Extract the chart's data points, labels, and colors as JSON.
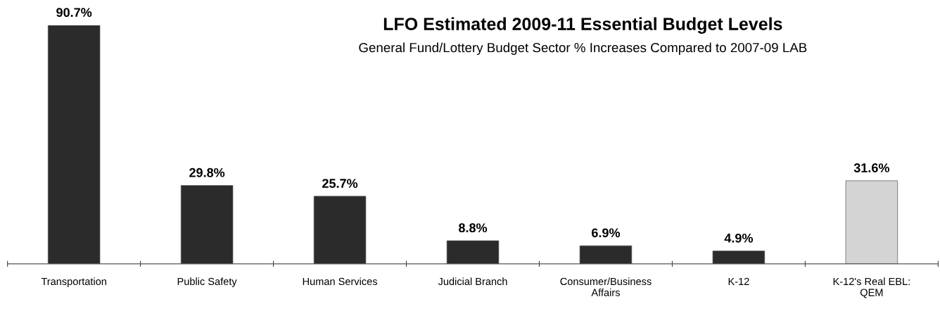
{
  "chart_data": {
    "type": "bar",
    "title": "LFO Estimated 2009-11 Essential Budget Levels",
    "subtitle": "General Fund/Lottery Budget Sector % Increases Compared to 2007-09 LAB",
    "categories": [
      "Transportation",
      "Public Safety",
      "Human Services",
      "Judicial Branch",
      "Consumer/Business\nAffairs",
      "K-12",
      "K-12's Real EBL:\nQEM"
    ],
    "values": [
      90.7,
      29.8,
      25.7,
      8.8,
      6.9,
      4.9,
      31.6
    ],
    "colors": [
      "#2b2b2b",
      "#2b2b2b",
      "#2b2b2b",
      "#2b2b2b",
      "#2b2b2b",
      "#2b2b2b",
      "#d4d4d4"
    ],
    "value_labels": [
      "90.7%",
      "29.8%",
      "25.7%",
      "8.8%",
      "6.9%",
      "4.9%",
      "31.6%"
    ],
    "grid": false,
    "legend": false
  }
}
